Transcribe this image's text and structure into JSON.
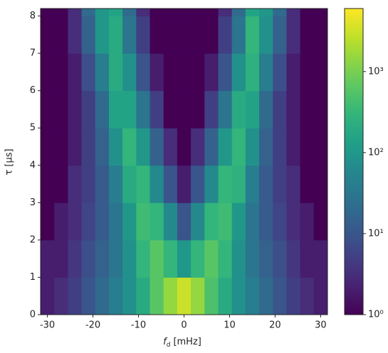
{
  "chart_data": {
    "type": "heatmap",
    "xlabel": {
      "symbol": "f",
      "subscript": "d",
      "unit": "[mHz]"
    },
    "ylabel": "τ [μs]",
    "xlim": [
      -31.5,
      31.5
    ],
    "xticks": [
      -30,
      -20,
      -10,
      0,
      10,
      20,
      30
    ],
    "ylim": [
      0,
      8.2
    ],
    "yticks": [
      0,
      1,
      2,
      3,
      4,
      5,
      6,
      7,
      8
    ],
    "xbins": [
      -31.5,
      -28.5,
      -25.5,
      -22.5,
      -19.5,
      -16.5,
      -13.5,
      -10.5,
      -7.5,
      -4.5,
      -1.5,
      1.5,
      4.5,
      7.5,
      10.5,
      13.5,
      16.5,
      19.5,
      22.5,
      25.5,
      28.5,
      31.5
    ],
    "ybins": [
      0,
      1,
      2,
      3,
      4,
      5,
      6,
      7,
      8,
      8.2
    ],
    "z": [
      [
        2,
        3,
        5,
        10,
        20,
        40,
        80,
        200,
        600,
        1500,
        3000,
        1500,
        500,
        200,
        80,
        40,
        20,
        10,
        5,
        3,
        2
      ],
      [
        2,
        2,
        4,
        8,
        15,
        30,
        80,
        300,
        600,
        300,
        100,
        300,
        600,
        300,
        80,
        30,
        15,
        8,
        4,
        2,
        2
      ],
      [
        1,
        2,
        3,
        6,
        12,
        30,
        100,
        400,
        300,
        60,
        10,
        60,
        300,
        400,
        100,
        30,
        12,
        6,
        3,
        2,
        1
      ],
      [
        1,
        1,
        3,
        5,
        12,
        40,
        200,
        300,
        60,
        10,
        2,
        10,
        60,
        300,
        250,
        40,
        12,
        5,
        3,
        1,
        1
      ],
      [
        1,
        1,
        2,
        5,
        15,
        80,
        300,
        100,
        15,
        3,
        1,
        3,
        15,
        100,
        300,
        80,
        15,
        5,
        2,
        1,
        1
      ],
      [
        1,
        1,
        2,
        5,
        20,
        150,
        150,
        30,
        5,
        1,
        1,
        1,
        5,
        30,
        200,
        150,
        20,
        5,
        2,
        1,
        1
      ],
      [
        1,
        1,
        2,
        8,
        40,
        200,
        80,
        10,
        2,
        1,
        1,
        1,
        2,
        10,
        80,
        250,
        40,
        8,
        2,
        1,
        1
      ],
      [
        1,
        1,
        3,
        15,
        100,
        200,
        30,
        5,
        1,
        1,
        1,
        1,
        1,
        5,
        30,
        300,
        80,
        15,
        3,
        1,
        1
      ],
      [
        1,
        1,
        3,
        20,
        100,
        150,
        20,
        3,
        1,
        1,
        1,
        1,
        1,
        3,
        20,
        150,
        100,
        20,
        3,
        1,
        1
      ]
    ],
    "colormap": "viridis",
    "color_scale": "log",
    "clim": [
      1,
      6000
    ],
    "cticks": [
      {
        "value": 1,
        "label": "10⁰"
      },
      {
        "value": 10,
        "label": "10¹"
      },
      {
        "value": 100,
        "label": "10²"
      },
      {
        "value": 1000,
        "label": "10³"
      }
    ]
  }
}
